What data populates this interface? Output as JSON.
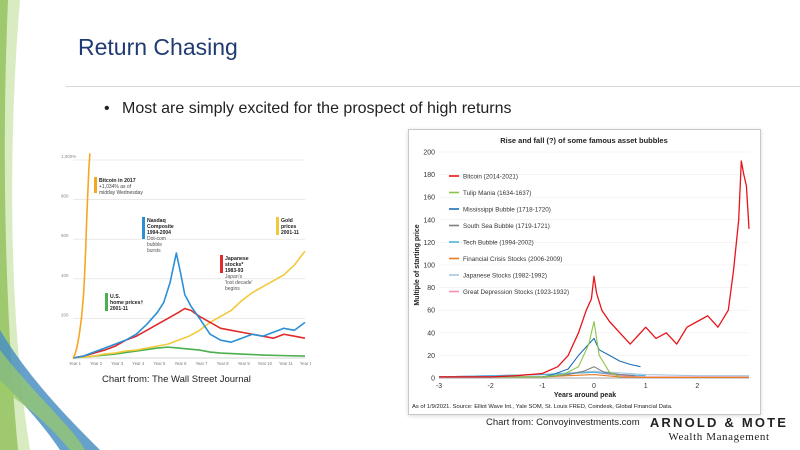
{
  "slide": {
    "title": "Return Chasing",
    "bullet": "Most are simply excited for the prospect of high returns",
    "caption_left": "Chart from: The Wall Street Journal",
    "caption_right": "Chart from: Convoyinvestments.com",
    "logo_name": "ARNOLD & MOTE",
    "logo_sub": "Wealth Management",
    "colors": {
      "title": "#1f3b73",
      "deco_green": "#9ccc65",
      "deco_blue": "#4a90c2"
    }
  },
  "chart_data": [
    {
      "type": "line",
      "yticks": [
        "1,000%",
        "800",
        "600",
        "400",
        "200"
      ],
      "ytick_values": [
        1000,
        800,
        600,
        400,
        200
      ],
      "ylim": [
        0,
        1000
      ],
      "x_ticks": [
        "Year 1",
        "Year 2",
        "Year 3",
        "Year 4",
        "Year 5",
        "Year 6",
        "Year 7",
        "Year 8",
        "Year 9",
        "Year 10",
        "Year 11",
        "Year 12"
      ],
      "xlim": [
        1,
        12
      ],
      "annotations": [
        {
          "bold": "Bitcoin in 2017",
          "lines": [
            "+1,034% as of",
            "midday Wednesday"
          ],
          "color": "#f5a623"
        },
        {
          "bold": "Nasdaq Composite",
          "lines": [
            "1994-2004",
            "Dot-com",
            "bubble",
            "bursts"
          ],
          "color": "#2b8fd6"
        },
        {
          "bold": "Gold prices",
          "lines": [
            "2001-11"
          ],
          "color": "#f2c93a"
        },
        {
          "bold": "Japanese stocks*",
          "lines": [
            "1983-93",
            "Japan's",
            "'lost decade'",
            "begins"
          ],
          "color": "#e02b2b"
        },
        {
          "bold": "U.S. home prices†",
          "lines": [
            "2001-11"
          ],
          "color": "#4caf50"
        }
      ],
      "series": [
        {
          "name": "Bitcoin in 2017",
          "color": "#f5a623",
          "x": [
            1,
            1.1,
            1.2,
            1.3,
            1.4,
            1.5,
            1.55,
            1.6,
            1.65,
            1.7,
            1.75,
            1.8
          ],
          "y": [
            0,
            20,
            60,
            120,
            200,
            320,
            420,
            550,
            700,
            830,
            950,
            1034
          ]
        },
        {
          "name": "Nasdaq Composite",
          "color": "#2b8fd6",
          "x": [
            1,
            1.5,
            2,
            2.5,
            3,
            3.5,
            4,
            4.5,
            5,
            5.3,
            5.6,
            5.9,
            6.1,
            6.3,
            6.6,
            7,
            7.5,
            8,
            8.5,
            9,
            9.5,
            10,
            10.5,
            11,
            11.5,
            12
          ],
          "y": [
            0,
            10,
            30,
            50,
            70,
            90,
            120,
            170,
            230,
            280,
            380,
            530,
            430,
            320,
            260,
            200,
            120,
            90,
            80,
            100,
            120,
            110,
            130,
            150,
            140,
            180
          ]
        },
        {
          "name": "Japanese stocks",
          "color": "#e02b2b",
          "x": [
            1,
            1.5,
            2,
            2.5,
            3,
            3.5,
            4,
            4.5,
            5,
            5.5,
            6,
            6.3,
            6.6,
            7,
            7.5,
            8,
            8.5,
            9,
            9.5,
            10,
            10.5,
            11,
            11.5,
            12
          ],
          "y": [
            0,
            10,
            25,
            40,
            60,
            90,
            110,
            140,
            170,
            200,
            230,
            250,
            240,
            210,
            180,
            150,
            140,
            130,
            120,
            110,
            100,
            120,
            110,
            100
          ]
        },
        {
          "name": "Gold prices",
          "color": "#f2c93a",
          "x": [
            1,
            1.5,
            2,
            2.5,
            3,
            3.5,
            4,
            4.5,
            5,
            5.5,
            6,
            6.5,
            7,
            7.5,
            8,
            8.5,
            9,
            9.5,
            10,
            10.5,
            11,
            11.5,
            12
          ],
          "y": [
            0,
            5,
            10,
            20,
            25,
            35,
            40,
            50,
            60,
            70,
            90,
            110,
            140,
            180,
            210,
            240,
            290,
            330,
            360,
            390,
            420,
            470,
            540
          ]
        },
        {
          "name": "U.S. home prices",
          "color": "#4caf50",
          "x": [
            1,
            2,
            3,
            4,
            5,
            5.5,
            6,
            6.5,
            7,
            7.5,
            8,
            9,
            10,
            11,
            12
          ],
          "y": [
            0,
            10,
            20,
            35,
            50,
            55,
            50,
            45,
            40,
            30,
            25,
            20,
            15,
            12,
            10
          ]
        }
      ]
    },
    {
      "type": "line",
      "title": "Rise and fall (?) of some famous asset bubbles",
      "xlabel": "Years around peak",
      "ylabel": "Multiple of starting price",
      "xlim": [
        -3,
        3
      ],
      "ylim": [
        0,
        200
      ],
      "xticks": [
        -3,
        -2,
        -1,
        0,
        1,
        2
      ],
      "yticks": [
        0,
        20,
        40,
        60,
        80,
        100,
        120,
        140,
        160,
        180,
        200
      ],
      "footnote": "As of 1/9/2021. Source: Elliot Wave Int., Yale SOM, St. Louis FRED, Coindesk, Global Financial Data.",
      "series": [
        {
          "name": "Bitcoin (2014-2021)",
          "color": "#e8141b",
          "x": [
            -3,
            -2,
            -1.5,
            -1,
            -0.7,
            -0.5,
            -0.3,
            -0.15,
            -0.05,
            0,
            0.05,
            0.15,
            0.3,
            0.5,
            0.7,
            1.0,
            1.2,
            1.4,
            1.6,
            1.8,
            2.0,
            2.2,
            2.4,
            2.6,
            2.7,
            2.8,
            2.85,
            2.9,
            2.95,
            3.0
          ],
          "y": [
            1,
            1,
            2,
            4,
            10,
            20,
            40,
            60,
            70,
            90,
            75,
            60,
            50,
            40,
            30,
            45,
            35,
            40,
            30,
            45,
            50,
            55,
            45,
            60,
            95,
            140,
            192,
            180,
            170,
            132
          ]
        },
        {
          "name": "Tulip Mania (1634-1637)",
          "color": "#8bc34a",
          "x": [
            -3,
            -1,
            -0.6,
            -0.3,
            -0.1,
            0,
            0.1,
            0.3,
            0.5
          ],
          "y": [
            1,
            1,
            3,
            10,
            30,
            50,
            20,
            5,
            1
          ]
        },
        {
          "name": "Mississippi Bubble (1718-1720)",
          "color": "#1f6fb5",
          "x": [
            -3,
            -1,
            -0.8,
            -0.5,
            -0.3,
            -0.1,
            0,
            0.1,
            0.3,
            0.5,
            0.7,
            0.9
          ],
          "y": [
            1,
            1,
            3,
            8,
            20,
            30,
            35,
            25,
            20,
            15,
            12,
            10
          ]
        },
        {
          "name": "South Sea Bubble (1719-1721)",
          "color": "#7f7f7f",
          "x": [
            -3,
            -1,
            -0.5,
            -0.2,
            0,
            0.2,
            0.5,
            0.8
          ],
          "y": [
            1,
            1,
            3,
            6,
            10,
            5,
            3,
            2
          ]
        },
        {
          "name": "Tech Bubble (1994-2002)",
          "color": "#4fb3e0",
          "x": [
            -3,
            -2,
            -1,
            -0.5,
            0,
            0.5,
            1.0
          ],
          "y": [
            1,
            2,
            3,
            4,
            5,
            3,
            2
          ]
        },
        {
          "name": "Financial Crisis Stocks (2006-2009)",
          "color": "#e67e22",
          "x": [
            -3,
            -1,
            -0.5,
            0,
            0.5,
            1.0,
            2,
            3
          ],
          "y": [
            1,
            1,
            2,
            3,
            1,
            0.5,
            0.5,
            0.5
          ]
        },
        {
          "name": "Japanese Stocks (1982-1992)",
          "color": "#a9c6e0",
          "x": [
            -3,
            -2,
            -1,
            0,
            1,
            2,
            3
          ],
          "y": [
            1,
            2,
            3,
            6,
            3,
            2,
            2
          ]
        },
        {
          "name": "Great Depression Stocks (1923-1932)",
          "color": "#f48fb1",
          "x": [
            -3,
            -2,
            -1,
            0,
            0.5,
            1,
            2,
            3
          ],
          "y": [
            1,
            2,
            3,
            5,
            2,
            1,
            1,
            1
          ]
        }
      ]
    }
  ]
}
